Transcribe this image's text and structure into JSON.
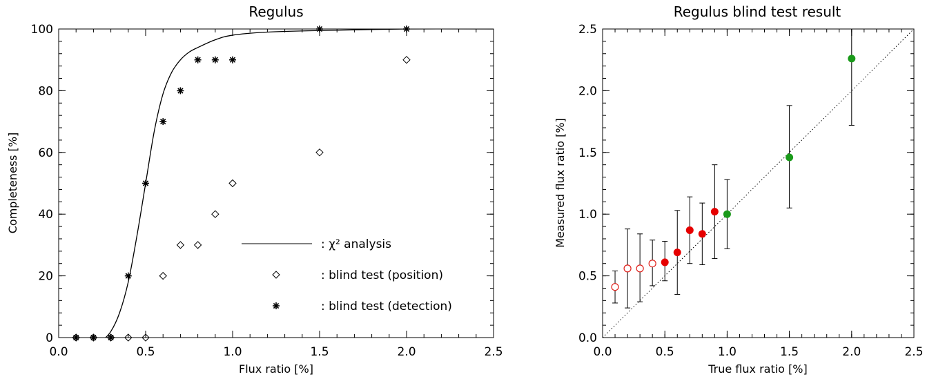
{
  "chart_data": [
    {
      "type": "scatter",
      "title": "Regulus",
      "xlabel": "Flux ratio [%]",
      "ylabel": "Completeness [%]",
      "xlim": [
        0,
        2.5
      ],
      "ylim": [
        0,
        100
      ],
      "x_ticks": [
        "0.0",
        "0.5",
        "1.0",
        "1.5",
        "2.0",
        "2.5"
      ],
      "y_ticks": [
        "0",
        "20",
        "40",
        "60",
        "80",
        "100"
      ],
      "grid": false,
      "legend_placement": "bottom-right",
      "legend": {
        "chi2": ": χ² analysis",
        "position": ": blind test (position)",
        "detection": ": blind test (detection)"
      },
      "series": [
        {
          "name": ": χ² analysis",
          "kind": "line",
          "x": [
            0.1,
            0.2,
            0.25,
            0.3,
            0.35,
            0.4,
            0.45,
            0.5,
            0.55,
            0.6,
            0.65,
            0.7,
            0.75,
            0.8,
            0.9,
            1.0,
            1.2,
            1.5,
            2.0,
            2.5
          ],
          "y": [
            -4,
            -3,
            -1,
            2,
            8,
            18,
            33,
            50,
            67,
            79,
            86,
            90,
            92.5,
            94,
            96.5,
            98,
            99,
            99.5,
            100,
            100
          ]
        },
        {
          "name": ": blind test (position)",
          "kind": "diamond",
          "x": [
            0.1,
            0.2,
            0.3,
            0.4,
            0.5,
            0.6,
            0.7,
            0.8,
            0.9,
            1.0,
            1.5,
            2.0
          ],
          "y": [
            0,
            0,
            0,
            0,
            0,
            20,
            30,
            30,
            40,
            50,
            60,
            90
          ]
        },
        {
          "name": ": blind test (detection)",
          "kind": "asterisk",
          "x": [
            0.1,
            0.2,
            0.3,
            0.4,
            0.5,
            0.6,
            0.7,
            0.8,
            0.9,
            1.0,
            1.5,
            2.0
          ],
          "y": [
            0,
            0,
            0,
            20,
            50,
            70,
            80,
            90,
            90,
            90,
            100,
            100
          ]
        }
      ]
    },
    {
      "type": "scatter",
      "title": "Regulus blind test result",
      "xlabel": "True flux ratio [%]",
      "ylabel": "Measured flux ratio [%]",
      "xlim": [
        0,
        2.5
      ],
      "ylim": [
        0,
        2.5
      ],
      "x_ticks": [
        "0.0",
        "0.5",
        "1.0",
        "1.5",
        "2.0",
        "2.5"
      ],
      "y_ticks": [
        "0.0",
        "0.5",
        "1.0",
        "1.5",
        "2.0",
        "2.5"
      ],
      "grid": false,
      "reference_line": "y = x (dotted)",
      "colors": {
        "open": "#e0201a",
        "filled_red": "#e60000",
        "green": "#1a9a1a"
      },
      "points": [
        {
          "x": 0.1,
          "y": 0.41,
          "err_low": 0.28,
          "err_high": 0.54,
          "style": "open"
        },
        {
          "x": 0.2,
          "y": 0.56,
          "err_low": 0.24,
          "err_high": 0.88,
          "style": "open"
        },
        {
          "x": 0.3,
          "y": 0.56,
          "err_low": 0.29,
          "err_high": 0.84,
          "style": "open"
        },
        {
          "x": 0.4,
          "y": 0.6,
          "err_low": 0.42,
          "err_high": 0.79,
          "style": "open"
        },
        {
          "x": 0.5,
          "y": 0.61,
          "err_low": 0.46,
          "err_high": 0.78,
          "style": "filled_red"
        },
        {
          "x": 0.6,
          "y": 0.69,
          "err_low": 0.35,
          "err_high": 1.03,
          "style": "filled_red"
        },
        {
          "x": 0.7,
          "y": 0.87,
          "err_low": 0.6,
          "err_high": 1.14,
          "style": "filled_red"
        },
        {
          "x": 0.8,
          "y": 0.84,
          "err_low": 0.59,
          "err_high": 1.09,
          "style": "filled_red"
        },
        {
          "x": 0.9,
          "y": 1.02,
          "err_low": 0.64,
          "err_high": 1.4,
          "style": "filled_red"
        },
        {
          "x": 1.0,
          "y": 1.0,
          "err_low": 0.72,
          "err_high": 1.28,
          "style": "green"
        },
        {
          "x": 1.5,
          "y": 1.46,
          "err_low": 1.05,
          "err_high": 1.88,
          "style": "green"
        },
        {
          "x": 2.0,
          "y": 2.26,
          "err_low": 1.72,
          "err_high": 2.5,
          "style": "green"
        }
      ]
    }
  ]
}
